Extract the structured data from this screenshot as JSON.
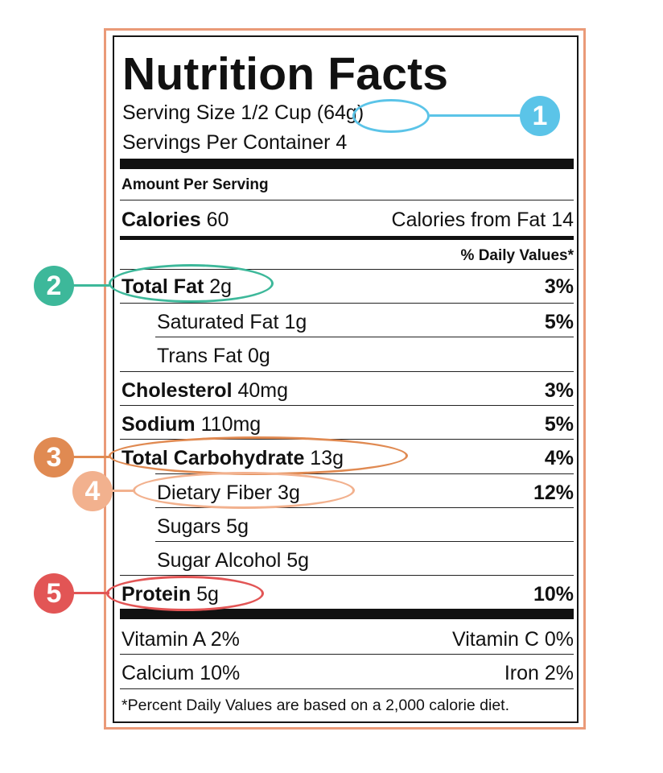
{
  "label": {
    "title": "Nutrition Facts",
    "serving_size": "Serving Size 1/2 Cup (64g)",
    "servings_per_container": "Servings Per Container 4",
    "amount_per_serving": "Amount Per Serving",
    "calories_label": "Calories",
    "calories_value": "60",
    "calories_from_fat": "Calories from Fat 14",
    "daily_values_header": "% Daily Values*",
    "nutrients": [
      {
        "name": "Total Fat",
        "amount": "2g",
        "dv": "3%"
      },
      {
        "name": "Saturated Fat",
        "amount": "1g",
        "dv": "5%"
      },
      {
        "name": "Trans Fat",
        "amount": "0g",
        "dv": ""
      },
      {
        "name": "Cholesterol",
        "amount": "40mg",
        "dv": "3%"
      },
      {
        "name": "Sodium",
        "amount": "110mg",
        "dv": "5%"
      },
      {
        "name": "Total Carbohydrate",
        "amount": "13g",
        "dv": "4%"
      },
      {
        "name": "Dietary Fiber",
        "amount": "3g",
        "dv": "12%"
      },
      {
        "name": "Sugars",
        "amount": "5g",
        "dv": ""
      },
      {
        "name": "Sugar Alcohol",
        "amount": "5g",
        "dv": ""
      },
      {
        "name": "Protein",
        "amount": "5g",
        "dv": "10%"
      }
    ],
    "vitamins": [
      {
        "left": "Vitamin A 2%",
        "right": "Vitamin C 0%"
      },
      {
        "left": "Calcium 10%",
        "right": "Iron 2%"
      }
    ],
    "footnote": "*Percent Daily Values are based on a 2,000 calorie diet."
  },
  "annotations": [
    {
      "number": "1",
      "color": "#5bc4e8",
      "target": "serving size"
    },
    {
      "number": "2",
      "color": "#3db89a",
      "target": "total fat"
    },
    {
      "number": "3",
      "color": "#e08a52",
      "target": "total carbohydrate"
    },
    {
      "number": "4",
      "color": "#f2b18e",
      "target": "dietary fiber"
    },
    {
      "number": "5",
      "color": "#e25555",
      "target": "protein"
    }
  ]
}
